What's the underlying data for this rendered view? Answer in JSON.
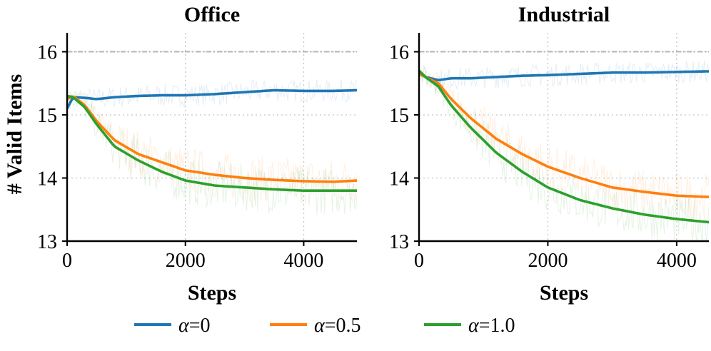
{
  "chart_data": {
    "type": "line",
    "ylabel": "# Valid Items",
    "xlabel": "Steps",
    "reference_line": 16,
    "legend": {
      "placement": "bottom-center",
      "entries": [
        {
          "symbol": "α",
          "eq": "=",
          "value": "0",
          "color": "#1f77b4"
        },
        {
          "symbol": "α",
          "eq": "=",
          "value": "0.5",
          "color": "#ff7f0e"
        },
        {
          "symbol": "α",
          "eq": "=",
          "value": "1.0",
          "color": "#2ca02c"
        }
      ]
    },
    "panels": [
      {
        "title": "Office",
        "xlim": [
          0,
          4900
        ],
        "ylim": [
          13,
          16.3
        ],
        "xticks": [
          0,
          2000,
          4000
        ],
        "xtick_labels": [
          "0",
          "2000",
          "4000"
        ],
        "yticks": [
          13,
          14,
          15,
          16
        ],
        "ytick_labels": [
          "13",
          "14",
          "15",
          "16"
        ],
        "series": [
          {
            "name": "α=0",
            "color": "#1f77b4",
            "x": [
              0,
              100,
              300,
              500,
              800,
              1200,
              1600,
              2000,
              2500,
              3000,
              3500,
              4000,
              4500,
              4900
            ],
            "y": [
              15.1,
              15.28,
              15.27,
              15.25,
              15.28,
              15.3,
              15.31,
              15.31,
              15.33,
              15.36,
              15.39,
              15.38,
              15.38,
              15.39
            ]
          },
          {
            "name": "α=0.5",
            "color": "#ff7f0e",
            "x": [
              0,
              100,
              300,
              500,
              800,
              1200,
              1600,
              2000,
              2500,
              3000,
              3500,
              4000,
              4500,
              4900
            ],
            "y": [
              15.25,
              15.3,
              15.15,
              14.9,
              14.6,
              14.38,
              14.25,
              14.12,
              14.05,
              14.0,
              13.97,
              13.95,
              13.94,
              13.96
            ]
          },
          {
            "name": "α=1.0",
            "color": "#2ca02c",
            "x": [
              0,
              100,
              300,
              500,
              800,
              1200,
              1600,
              2000,
              2500,
              3000,
              3500,
              4000,
              4500,
              4900
            ],
            "y": [
              15.3,
              15.28,
              15.12,
              14.85,
              14.5,
              14.28,
              14.1,
              13.96,
              13.88,
              13.85,
              13.82,
              13.8,
              13.8,
              13.8
            ]
          }
        ]
      },
      {
        "title": "Industrial",
        "xlim": [
          0,
          4500
        ],
        "ylim": [
          13,
          16.3
        ],
        "xticks": [
          0,
          2000,
          4000
        ],
        "xtick_labels": [
          "0",
          "2000",
          "4000"
        ],
        "yticks": [
          13,
          14,
          15,
          16
        ],
        "ytick_labels": [
          "13",
          "14",
          "15",
          "16"
        ],
        "series": [
          {
            "name": "α=0",
            "color": "#1f77b4",
            "x": [
              0,
              100,
              300,
              500,
              800,
              1200,
              1600,
              2000,
              2500,
              3000,
              3500,
              4000,
              4500
            ],
            "y": [
              15.65,
              15.6,
              15.55,
              15.58,
              15.58,
              15.6,
              15.62,
              15.63,
              15.65,
              15.67,
              15.67,
              15.68,
              15.69
            ]
          },
          {
            "name": "α=0.5",
            "color": "#ff7f0e",
            "x": [
              0,
              100,
              300,
              500,
              800,
              1200,
              1600,
              2000,
              2500,
              3000,
              3500,
              4000,
              4500
            ],
            "y": [
              15.65,
              15.6,
              15.5,
              15.25,
              14.95,
              14.62,
              14.38,
              14.18,
              14.0,
              13.85,
              13.78,
              13.72,
              13.7
            ]
          },
          {
            "name": "α=1.0",
            "color": "#2ca02c",
            "x": [
              0,
              100,
              300,
              500,
              800,
              1200,
              1600,
              2000,
              2500,
              3000,
              3500,
              4000,
              4500
            ],
            "y": [
              15.7,
              15.6,
              15.45,
              15.15,
              14.8,
              14.4,
              14.1,
              13.85,
              13.65,
              13.52,
              13.42,
              13.35,
              13.3
            ]
          }
        ]
      }
    ]
  }
}
